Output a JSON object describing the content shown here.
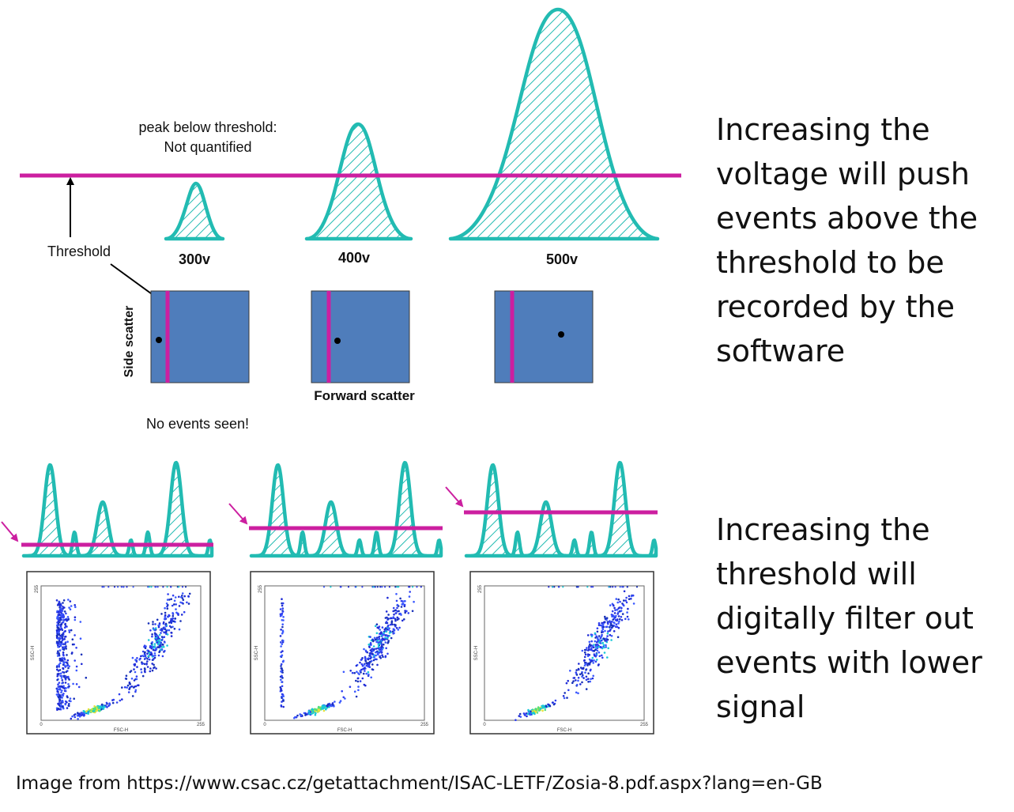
{
  "top_diagram": {
    "peak_note_line1": "peak below threshold:",
    "peak_note_line2": "Not quantified",
    "threshold_label": "Threshold",
    "voltages": [
      "300v",
      "400v",
      "500v"
    ],
    "side_scatter_label": "Side scatter",
    "forward_scatter_label": "Forward scatter",
    "no_events_label": "No events seen!"
  },
  "plots": {
    "x_axis_label": "FSC-H",
    "y_axis_label": "SSC-H",
    "tick_zero": "0",
    "tick_max": "255"
  },
  "side_text_1": [
    "Increasing the",
    "voltage will push",
    "events above the",
    "threshold to be",
    "recorded by the",
    "software"
  ],
  "side_text_2": [
    "Increasing the",
    "threshold will",
    "digitally filter out",
    "events with lower",
    "signal"
  ],
  "source_caption": "Image from https://www.csac.cz/getattachment/ISAC-LETF/Zosia-8.pdf.aspx?lang=en-GB",
  "colors": {
    "peak_stroke": "#22BBB2",
    "threshold": "#CC1FA0",
    "scatter_box": "#4F7DBB",
    "event_dot": "#000000"
  }
}
